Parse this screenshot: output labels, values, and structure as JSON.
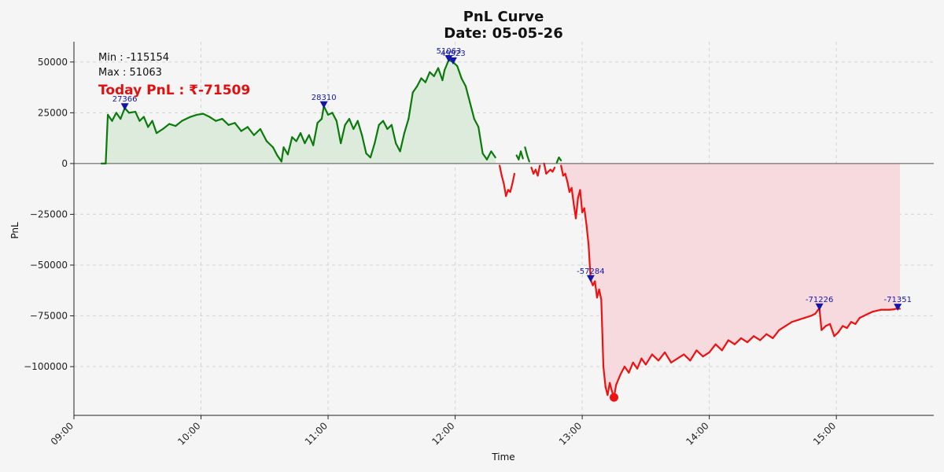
{
  "chart_data": {
    "type": "line",
    "title": "PnL Curve",
    "subtitle": "Date: 05-05-26",
    "xlabel": "Time",
    "ylabel": "PnL",
    "x_ticks": [
      "09:00",
      "10:00",
      "11:00",
      "12:00",
      "13:00",
      "14:00",
      "15:00"
    ],
    "y_ticks": [
      "50000",
      "25000",
      "0",
      "−25000",
      "−50000",
      "−75000",
      "−100000"
    ],
    "x_range": [
      "09:00",
      "15:46"
    ],
    "ylim": [
      -124000,
      60000
    ],
    "grid": true,
    "stats": {
      "min_text": "Min : -115154",
      "max_text": "Max : 51063",
      "today_text": "Today PnL : ₹-71509"
    },
    "colors": {
      "positive": "#0a7a0a",
      "negative": "#ee1111",
      "positive_fill": "#dcebdc",
      "negative_fill": "#f7dadd",
      "marker": "#1515a8",
      "today_text": "#e01010"
    },
    "min_point": {
      "x": "13:15",
      "y": -115154
    },
    "annotations": [
      {
        "x": "09:24",
        "y": 27366,
        "label": "27366"
      },
      {
        "x": "10:58",
        "y": 28310,
        "label": "28310"
      },
      {
        "x": "11:57",
        "y": 51063,
        "label": "51063"
      },
      {
        "x": "11:59",
        "y": 49923,
        "label": "49923"
      },
      {
        "x": "13:04",
        "y": -57284,
        "label": "-57284"
      },
      {
        "x": "14:52",
        "y": -71226,
        "label": "-71226"
      },
      {
        "x": "15:29",
        "y": -71351,
        "label": "-71351"
      }
    ],
    "series": [
      {
        "points": [
          [
            "09:13",
            0
          ],
          [
            "09:15",
            0
          ],
          [
            "09:16",
            24000
          ],
          [
            "09:18",
            21000
          ],
          [
            "09:20",
            25000
          ],
          [
            "09:22",
            22000
          ],
          [
            "09:24",
            27366
          ],
          [
            "09:26",
            25000
          ],
          [
            "09:29",
            25500
          ],
          [
            "09:31",
            21000
          ],
          [
            "09:33",
            23000
          ],
          [
            "09:35",
            18000
          ],
          [
            "09:37",
            21000
          ],
          [
            "09:39",
            15000
          ],
          [
            "09:42",
            17000
          ],
          [
            "09:45",
            19500
          ],
          [
            "09:48",
            18500
          ],
          [
            "09:51",
            21000
          ],
          [
            "09:55",
            23000
          ],
          [
            "09:58",
            24000
          ],
          [
            "10:01",
            24500
          ],
          [
            "10:04",
            23000
          ],
          [
            "10:07",
            21000
          ],
          [
            "10:10",
            22000
          ],
          [
            "10:13",
            19000
          ],
          [
            "10:16",
            20000
          ],
          [
            "10:19",
            16000
          ],
          [
            "10:22",
            18000
          ],
          [
            "10:25",
            14000
          ],
          [
            "10:28",
            17000
          ],
          [
            "10:31",
            11000
          ],
          [
            "10:34",
            8000
          ],
          [
            "10:36",
            4000
          ],
          [
            "10:38",
            1000
          ],
          [
            "10:39",
            8000
          ],
          [
            "10:41",
            4500
          ],
          [
            "10:43",
            13000
          ],
          [
            "10:45",
            11000
          ],
          [
            "10:47",
            15000
          ],
          [
            "10:49",
            10000
          ],
          [
            "10:51",
            14000
          ],
          [
            "10:53",
            9000
          ],
          [
            "10:55",
            20000
          ],
          [
            "10:57",
            22000
          ],
          [
            "10:58",
            28310
          ],
          [
            "11:00",
            24000
          ],
          [
            "11:02",
            25000
          ],
          [
            "11:04",
            21000
          ],
          [
            "11:06",
            10000
          ],
          [
            "11:08",
            19000
          ],
          [
            "11:10",
            22000
          ],
          [
            "11:12",
            17000
          ],
          [
            "11:14",
            21000
          ],
          [
            "11:16",
            14000
          ],
          [
            "11:18",
            5000
          ],
          [
            "11:20",
            3000
          ],
          [
            "11:22",
            10000
          ],
          [
            "11:24",
            19000
          ],
          [
            "11:26",
            21000
          ],
          [
            "11:28",
            17000
          ],
          [
            "11:30",
            19000
          ],
          [
            "11:32",
            10000
          ],
          [
            "11:34",
            6000
          ],
          [
            "11:36",
            15000
          ],
          [
            "11:38",
            22000
          ],
          [
            "11:40",
            35000
          ],
          [
            "11:42",
            38000
          ],
          [
            "11:44",
            42000
          ],
          [
            "11:46",
            40000
          ],
          [
            "11:48",
            45000
          ],
          [
            "11:50",
            43000
          ],
          [
            "11:52",
            47000
          ],
          [
            "11:54",
            41000
          ],
          [
            "11:55",
            46000
          ],
          [
            "11:57",
            51063
          ],
          [
            "11:59",
            49923
          ],
          [
            "12:01",
            48000
          ],
          [
            "12:03",
            42000
          ],
          [
            "12:05",
            38000
          ],
          [
            "12:07",
            30000
          ],
          [
            "12:09",
            22000
          ],
          [
            "12:11",
            18000
          ],
          [
            "12:13",
            5000
          ],
          [
            "12:15",
            2000
          ],
          [
            "12:17",
            6000
          ],
          [
            "12:19",
            3000
          ]
        ]
      },
      {
        "points": [
          [
            "12:21",
            -1000
          ],
          [
            "12:22",
            -6000
          ],
          [
            "12:23",
            -10000
          ],
          [
            "12:24",
            -16000
          ],
          [
            "12:25",
            -13000
          ],
          [
            "12:26",
            -14000
          ],
          [
            "12:27",
            -10000
          ],
          [
            "12:28",
            -5000
          ]
        ]
      },
      {
        "points": [
          [
            "12:29",
            4000
          ],
          [
            "12:30",
            2000
          ],
          [
            "12:31",
            6000
          ],
          [
            "12:32",
            2500
          ]
        ]
      },
      {
        "points": [
          [
            "12:33",
            8000
          ],
          [
            "12:34",
            4000
          ],
          [
            "12:35",
            1000
          ]
        ]
      },
      {
        "points": [
          [
            "12:36",
            -2000
          ],
          [
            "12:37",
            -5000
          ],
          [
            "12:38",
            -3000
          ],
          [
            "12:39",
            -6000
          ],
          [
            "12:40",
            -1000
          ]
        ]
      },
      {
        "points": [
          [
            "12:42",
            0
          ],
          [
            "12:43",
            -5000
          ],
          [
            "12:45",
            -3000
          ],
          [
            "12:46",
            -4000
          ],
          [
            "12:47",
            -2000
          ]
        ]
      },
      {
        "points": [
          [
            "12:48",
            500
          ],
          [
            "12:49",
            3000
          ],
          [
            "12:50",
            1500
          ]
        ]
      },
      {
        "points": [
          [
            "12:50",
            -1000
          ],
          [
            "12:51",
            -6000
          ],
          [
            "12:52",
            -5000
          ],
          [
            "12:53",
            -9000
          ],
          [
            "12:54",
            -14000
          ],
          [
            "12:55",
            -12000
          ],
          [
            "12:56",
            -20000
          ],
          [
            "12:57",
            -27000
          ],
          [
            "12:58",
            -17000
          ],
          [
            "12:59",
            -13000
          ],
          [
            "13:00",
            -24000
          ],
          [
            "13:01",
            -22000
          ],
          [
            "13:02",
            -30000
          ],
          [
            "13:03",
            -40000
          ],
          [
            "13:04",
            -57284
          ],
          [
            "13:05",
            -60000
          ],
          [
            "13:06",
            -58000
          ],
          [
            "13:07",
            -66000
          ],
          [
            "13:08",
            -62000
          ],
          [
            "13:09",
            -67000
          ],
          [
            "13:10",
            -100000
          ],
          [
            "13:11",
            -110000
          ],
          [
            "13:12",
            -114000
          ],
          [
            "13:13",
            -108000
          ],
          [
            "13:14",
            -112000
          ],
          [
            "13:15",
            -115154
          ],
          [
            "13:16",
            -109000
          ],
          [
            "13:18",
            -104000
          ],
          [
            "13:20",
            -100000
          ],
          [
            "13:22",
            -103000
          ],
          [
            "13:24",
            -98000
          ],
          [
            "13:26",
            -101000
          ],
          [
            "13:28",
            -96000
          ],
          [
            "13:30",
            -99000
          ],
          [
            "13:33",
            -94000
          ],
          [
            "13:36",
            -97000
          ],
          [
            "13:39",
            -93000
          ],
          [
            "13:42",
            -98000
          ],
          [
            "13:45",
            -96000
          ],
          [
            "13:48",
            -94000
          ],
          [
            "13:51",
            -97000
          ],
          [
            "13:54",
            -92000
          ],
          [
            "13:57",
            -95000
          ],
          [
            "14:00",
            -93000
          ],
          [
            "14:03",
            -89000
          ],
          [
            "14:06",
            -92000
          ],
          [
            "14:09",
            -87000
          ],
          [
            "14:12",
            -89000
          ],
          [
            "14:15",
            -86000
          ],
          [
            "14:18",
            -88000
          ],
          [
            "14:21",
            -85000
          ],
          [
            "14:24",
            -87000
          ],
          [
            "14:27",
            -84000
          ],
          [
            "14:30",
            -86000
          ],
          [
            "14:33",
            -82000
          ],
          [
            "14:36",
            -80000
          ],
          [
            "14:39",
            -78000
          ],
          [
            "14:42",
            -77000
          ],
          [
            "14:45",
            -76000
          ],
          [
            "14:48",
            -75000
          ],
          [
            "14:50",
            -74000
          ],
          [
            "14:52",
            -71226
          ],
          [
            "14:53",
            -82000
          ],
          [
            "14:55",
            -80000
          ],
          [
            "14:57",
            -79000
          ],
          [
            "14:59",
            -85000
          ],
          [
            "15:01",
            -83000
          ],
          [
            "15:03",
            -80000
          ],
          [
            "15:05",
            -81000
          ],
          [
            "15:07",
            -78000
          ],
          [
            "15:09",
            -79000
          ],
          [
            "15:11",
            -76000
          ],
          [
            "15:13",
            -75000
          ],
          [
            "15:15",
            -74000
          ],
          [
            "15:17",
            -73000
          ],
          [
            "15:19",
            -72500
          ],
          [
            "15:21",
            -72000
          ],
          [
            "15:23",
            -72000
          ],
          [
            "15:25",
            -72000
          ],
          [
            "15:27",
            -71800
          ],
          [
            "15:29",
            -71351
          ],
          [
            "15:30",
            -71509
          ]
        ]
      }
    ]
  }
}
